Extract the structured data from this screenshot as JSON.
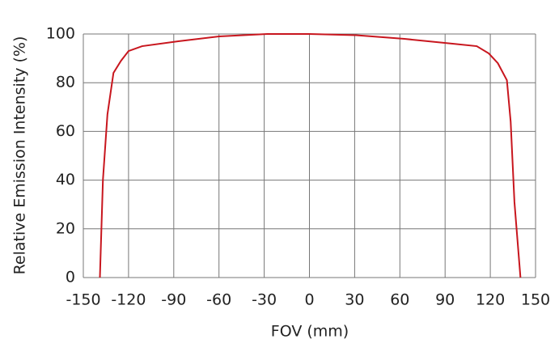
{
  "chart_data": {
    "type": "line",
    "xlabel": "FOV (mm)",
    "ylabel": "Relative Emission Intensity (%)",
    "x": [
      -139,
      -137,
      -134,
      -130,
      -125,
      -120,
      -111,
      -87,
      -60,
      -28,
      0,
      31,
      63,
      95,
      111,
      119,
      125,
      131,
      133.5,
      136,
      140
    ],
    "series": [
      {
        "color": "#c8161e",
        "values": [
          0,
          40,
          67,
          84,
          89,
          93,
          95,
          97,
          99,
          100,
          100,
          99.5,
          98,
          96,
          95,
          92,
          88,
          81,
          64,
          31,
          0
        ]
      }
    ],
    "xlim": [
      -150,
      150
    ],
    "xticks": [
      -150,
      -120,
      -90,
      -60,
      -30,
      0,
      30,
      60,
      90,
      120,
      150
    ],
    "ylim": [
      0,
      100
    ],
    "yticks": [
      0,
      20,
      40,
      60,
      80,
      100
    ],
    "grid": true
  }
}
